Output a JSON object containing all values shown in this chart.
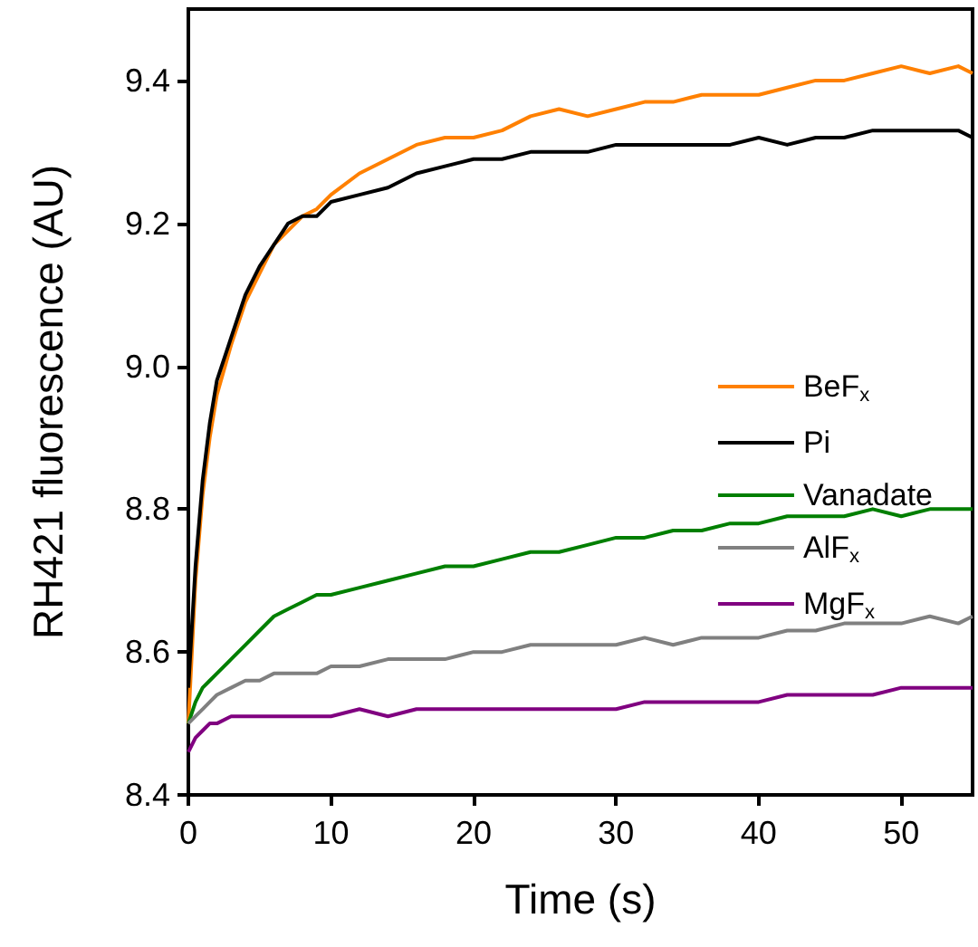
{
  "chart_data": {
    "type": "line",
    "xlabel": "Time (s)",
    "ylabel": "RH421 fluorescence (AU)",
    "x": [
      0,
      0.5,
      1,
      1.5,
      2,
      3,
      4,
      5,
      6,
      7,
      8,
      9,
      10,
      12,
      14,
      16,
      18,
      20,
      22,
      24,
      26,
      28,
      30,
      32,
      34,
      36,
      38,
      40,
      42,
      44,
      46,
      48,
      50,
      52,
      54,
      55
    ],
    "series": [
      {
        "name": "BeF$_{x}$",
        "color": "#ff8000",
        "values": [
          8.5,
          8.7,
          8.82,
          8.9,
          8.96,
          9.03,
          9.09,
          9.13,
          9.17,
          9.19,
          9.21,
          9.22,
          9.24,
          9.27,
          9.29,
          9.31,
          9.32,
          9.32,
          9.33,
          9.35,
          9.36,
          9.35,
          9.36,
          9.37,
          9.37,
          9.38,
          9.38,
          9.38,
          9.39,
          9.4,
          9.4,
          9.41,
          9.42,
          9.41,
          9.42,
          9.41
        ]
      },
      {
        "name": "Pi",
        "color": "#000000",
        "values": [
          8.55,
          8.72,
          8.84,
          8.92,
          8.98,
          9.04,
          9.1,
          9.14,
          9.17,
          9.2,
          9.21,
          9.21,
          9.23,
          9.24,
          9.25,
          9.27,
          9.28,
          9.29,
          9.29,
          9.3,
          9.3,
          9.3,
          9.31,
          9.31,
          9.31,
          9.31,
          9.31,
          9.32,
          9.31,
          9.32,
          9.32,
          9.33,
          9.33,
          9.33,
          9.33,
          9.32
        ]
      },
      {
        "name": "Vanadate",
        "color": "#007f00",
        "values": [
          8.5,
          8.53,
          8.55,
          8.56,
          8.57,
          8.59,
          8.61,
          8.63,
          8.65,
          8.66,
          8.67,
          8.68,
          8.68,
          8.69,
          8.7,
          8.71,
          8.72,
          8.72,
          8.73,
          8.74,
          8.74,
          8.75,
          8.76,
          8.76,
          8.77,
          8.77,
          8.78,
          8.78,
          8.79,
          8.79,
          8.79,
          8.8,
          8.79,
          8.8,
          8.8,
          8.8
        ]
      },
      {
        "name": "AlF$_{x}$",
        "color": "#808080",
        "values": [
          8.5,
          8.51,
          8.52,
          8.53,
          8.54,
          8.55,
          8.56,
          8.56,
          8.57,
          8.57,
          8.57,
          8.57,
          8.58,
          8.58,
          8.59,
          8.59,
          8.59,
          8.6,
          8.6,
          8.61,
          8.61,
          8.61,
          8.61,
          8.62,
          8.61,
          8.62,
          8.62,
          8.62,
          8.63,
          8.63,
          8.64,
          8.64,
          8.64,
          8.65,
          8.64,
          8.65
        ]
      },
      {
        "name": "MgF$_{x}$",
        "color": "#800080",
        "values": [
          8.46,
          8.48,
          8.49,
          8.5,
          8.5,
          8.51,
          8.51,
          8.51,
          8.51,
          8.51,
          8.51,
          8.51,
          8.51,
          8.52,
          8.51,
          8.52,
          8.52,
          8.52,
          8.52,
          8.52,
          8.52,
          8.52,
          8.52,
          8.53,
          8.53,
          8.53,
          8.53,
          8.53,
          8.54,
          8.54,
          8.54,
          8.54,
          8.55,
          8.55,
          8.55,
          8.55
        ]
      }
    ],
    "xlim": [
      0,
      55
    ],
    "xticks": [
      0,
      10,
      20,
      30,
      40,
      50
    ],
    "ylim": [
      8.4,
      9.5
    ],
    "yticks": [
      8.4,
      8.6,
      8.8,
      {
        "value": 9,
        "label": "9.0"
      },
      9.2,
      9.4
    ],
    "legend": "right",
    "grid": false,
    "marker": "none",
    "line_style": "solid"
  }
}
